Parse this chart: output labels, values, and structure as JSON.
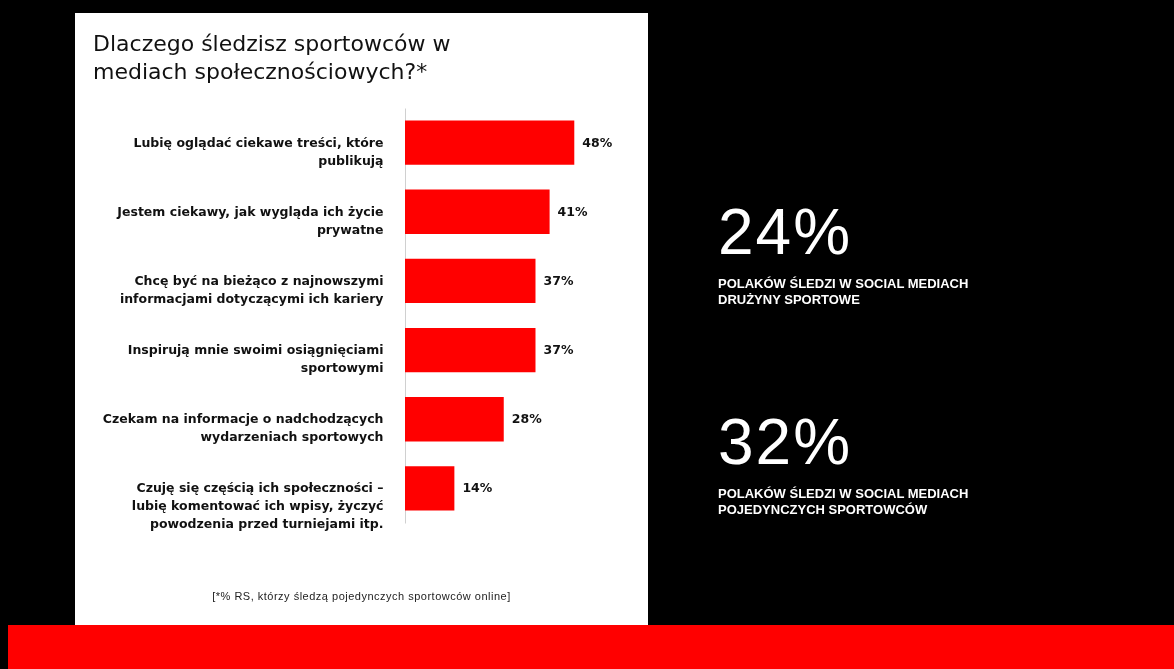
{
  "chart_data": [
    {
      "type": "bar",
      "orientation": "horizontal",
      "title": "Dlaczego śledzisz sportowców w mediach społecznościowych?*",
      "categories": [
        "Lubię oglądać ciekawe treści, które publikują",
        "Jestem ciekawy, jak wygląda ich życie prywatne",
        "Chcę być na bieżąco z najnowszymi informacjami dotyczącymi ich kariery",
        "Inspirują mnie swoimi osiągnięciami sportowymi",
        "Czekam na informacje o nadchodzących wydarzeniach sportowych",
        "Czuję się częścią ich społeczności – lubię komentować ich wpisy, życzyć powodzenia przed turniejami itp."
      ],
      "values": [
        48,
        41,
        37,
        37,
        28,
        14
      ],
      "value_labels": [
        "48%",
        "41%",
        "37%",
        "37%",
        "28%",
        "14%"
      ],
      "color": "#ff0000",
      "annotations": [
        "[*% RS, którzy śledzą pojedynczych sportowców online]"
      ]
    },
    {
      "type": "other",
      "annotations": [
        "24%",
        "POLAKÓW ŚLEDZI W SOCIAL MEDIACH DRUŻYNY SPORTOWE",
        "32%",
        "POLAKÓW ŚLEDZI W SOCIAL MEDIACH POJEDYNCZYCH SPORTOWCÓW"
      ]
    }
  ]
}
